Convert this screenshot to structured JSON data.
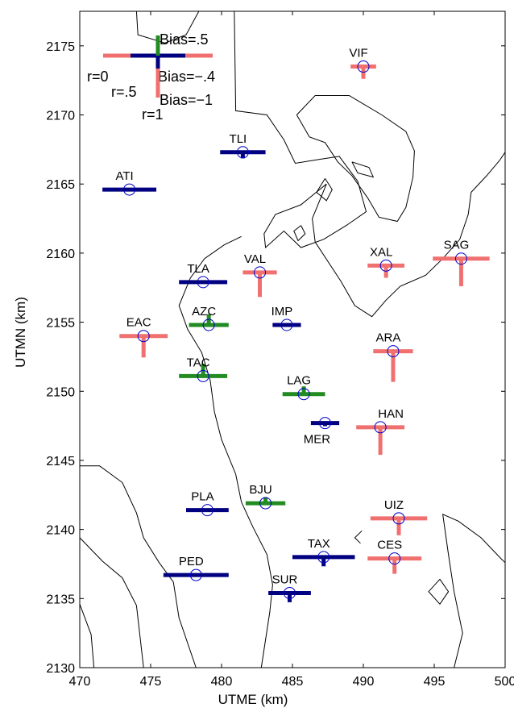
{
  "chart_data": {
    "type": "scatter",
    "title": "",
    "xlabel": "UTME (km)",
    "ylabel": "UTMN (km)",
    "xlim": [
      470,
      500
    ],
    "ylim": [
      2130,
      2177.5
    ],
    "x_ticks": [
      470,
      475,
      480,
      485,
      490,
      495,
      500
    ],
    "y_ticks": [
      2130,
      2135,
      2140,
      2145,
      2150,
      2155,
      2160,
      2165,
      2170,
      2175
    ],
    "grid": false,
    "colors": {
      "positive_bias": "#228b22",
      "near_zero_bias": "#000080",
      "negative_bias": "#f07070",
      "contour": "#000000",
      "station_marker": "#0000cc"
    },
    "legend": {
      "placement": "top-left",
      "labels": {
        "r0": "r=0",
        "r05": "r=.5",
        "r1": "r=1",
        "bias_pos": "Bias=.5",
        "bias_mid": "Bias=−.4",
        "bias_neg": "Bias=−1"
      }
    },
    "stations": [
      {
        "name": "VIF",
        "x": 490.0,
        "y": 2173.5,
        "width": 1.8,
        "bias": -0.4
      },
      {
        "name": "TLI",
        "x": 481.5,
        "y": 2167.3,
        "width": 3.2,
        "bias": -0.2
      },
      {
        "name": "ATI",
        "x": 473.5,
        "y": 2164.6,
        "width": 3.8,
        "bias": 0.0
      },
      {
        "name": "VAL",
        "x": 482.7,
        "y": 2158.6,
        "width": 2.4,
        "bias": -0.8
      },
      {
        "name": "XAL",
        "x": 491.6,
        "y": 2159.1,
        "width": 2.6,
        "bias": -0.4
      },
      {
        "name": "SAG",
        "x": 496.9,
        "y": 2159.6,
        "width": 4.0,
        "bias": -0.9
      },
      {
        "name": "TLA",
        "x": 478.7,
        "y": 2157.9,
        "width": 3.4,
        "bias": 0.0
      },
      {
        "name": "AZC",
        "x": 479.1,
        "y": 2154.8,
        "width": 2.8,
        "bias": 0.35
      },
      {
        "name": "IMP",
        "x": 484.6,
        "y": 2154.8,
        "width": 2.0,
        "bias": 0.0
      },
      {
        "name": "EAC",
        "x": 474.5,
        "y": 2154.0,
        "width": 3.4,
        "bias": -0.7
      },
      {
        "name": "ARA",
        "x": 492.1,
        "y": 2152.9,
        "width": 2.8,
        "bias": -1.0
      },
      {
        "name": "TAC",
        "x": 478.7,
        "y": 2151.1,
        "width": 3.4,
        "bias": 0.4
      },
      {
        "name": "LAG",
        "x": 485.8,
        "y": 2149.8,
        "width": 3.0,
        "bias": 0.25
      },
      {
        "name": "MER",
        "x": 487.3,
        "y": 2147.7,
        "width": 2.0,
        "bias": -0.1
      },
      {
        "name": "HAN",
        "x": 491.2,
        "y": 2147.4,
        "width": 3.4,
        "bias": -0.9
      },
      {
        "name": "PLA",
        "x": 479.0,
        "y": 2141.4,
        "width": 3.0,
        "bias": 0.0
      },
      {
        "name": "BJU",
        "x": 483.1,
        "y": 2141.9,
        "width": 2.8,
        "bias": 0.2
      },
      {
        "name": "UIZ",
        "x": 492.5,
        "y": 2140.8,
        "width": 4.0,
        "bias": -0.55
      },
      {
        "name": "TAX",
        "x": 487.2,
        "y": 2138.0,
        "width": 4.4,
        "bias": -0.3
      },
      {
        "name": "CES",
        "x": 492.2,
        "y": 2137.9,
        "width": 3.8,
        "bias": -0.5
      },
      {
        "name": "PED",
        "x": 478.2,
        "y": 2136.7,
        "width": 4.6,
        "bias": 0.0
      },
      {
        "name": "SUR",
        "x": 484.8,
        "y": 2135.4,
        "width": 3.0,
        "bias": -0.3
      }
    ],
    "contours": [
      [
        [
          474.0,
          2177.5
        ],
        [
          474.1,
          2175.8
        ],
        [
          476.0,
          2175.2
        ],
        [
          477.5,
          2175.8
        ],
        [
          478.4,
          2177.5
        ]
      ],
      [
        [
          480.9,
          2177.5
        ],
        [
          481.0,
          2170.3
        ],
        [
          483.2,
          2170.0
        ],
        [
          484.4,
          2168.2
        ],
        [
          485.2,
          2166.5
        ],
        [
          487.0,
          2166.8
        ],
        [
          488.3,
          2167.0
        ],
        [
          489.6,
          2165.2
        ],
        [
          490.2,
          2163.0
        ],
        [
          488.8,
          2162.0
        ],
        [
          487.2,
          2161.0
        ],
        [
          485.6,
          2160.4
        ],
        [
          484.4,
          2161.6
        ],
        [
          483.1,
          2160.4
        ],
        [
          483.0,
          2161.4
        ],
        [
          483.8,
          2162.8
        ],
        [
          485.6,
          2163.5
        ],
        [
          487.4,
          2165.0
        ],
        [
          486.4,
          2162.5
        ],
        [
          486.6,
          2160.8
        ],
        [
          488.4,
          2158.0
        ],
        [
          489.4,
          2156.2
        ],
        [
          490.6,
          2155.4
        ],
        [
          491.6,
          2156.6
        ],
        [
          492.6,
          2157.6
        ],
        [
          494.4,
          2158.4
        ],
        [
          495.6,
          2159.6
        ],
        [
          496.8,
          2161.0
        ],
        [
          497.4,
          2162.8
        ],
        [
          497.6,
          2164.4
        ],
        [
          498.7,
          2165.6
        ],
        [
          499.6,
          2166.7
        ],
        [
          500.0,
          2167.3
        ]
      ],
      [
        [
          485.3,
          2170.0
        ],
        [
          486.6,
          2171.4
        ],
        [
          489.0,
          2171.4
        ],
        [
          491.3,
          2170.0
        ],
        [
          493.0,
          2168.8
        ],
        [
          493.6,
          2167.4
        ],
        [
          493.5,
          2165.5
        ],
        [
          493.0,
          2163.3
        ],
        [
          492.4,
          2162.3
        ],
        [
          491.1,
          2162.6
        ],
        [
          490.3,
          2164.0
        ],
        [
          489.2,
          2165.6
        ],
        [
          488.2,
          2166.6
        ],
        [
          487.3,
          2168.0
        ],
        [
          486.2,
          2168.4
        ],
        [
          485.3,
          2170.0
        ]
      ],
      [
        [
          489.2,
          2166.6
        ],
        [
          490.4,
          2166.2
        ],
        [
          490.7,
          2165.5
        ],
        [
          489.6,
          2165.8
        ],
        [
          489.2,
          2166.6
        ]
      ],
      [
        [
          487.3,
          2165.4
        ],
        [
          487.8,
          2164.6
        ],
        [
          487.4,
          2163.8
        ],
        [
          486.7,
          2164.4
        ],
        [
          487.3,
          2165.4
        ]
      ],
      [
        [
          485.6,
          2162.0
        ],
        [
          485.9,
          2161.4
        ],
        [
          485.4,
          2160.9
        ],
        [
          485.1,
          2161.6
        ],
        [
          485.6,
          2162.0
        ]
      ],
      [
        [
          481.4,
          2161.2
        ],
        [
          480.2,
          2160.6
        ],
        [
          478.8,
          2159.6
        ],
        [
          477.8,
          2158.2
        ],
        [
          477.0,
          2156.2
        ],
        [
          477.6,
          2154.5
        ],
        [
          478.6,
          2152.8
        ],
        [
          479.2,
          2150.8
        ],
        [
          479.5,
          2148.5
        ],
        [
          480.0,
          2146.5
        ],
        [
          481.0,
          2144.0
        ],
        [
          481.4,
          2142.0
        ],
        [
          482.2,
          2140.2
        ],
        [
          483.2,
          2138.2
        ],
        [
          483.6,
          2136.0
        ],
        [
          483.4,
          2134.0
        ],
        [
          482.8,
          2130.0
        ]
      ],
      [
        [
          470.0,
          2144.6
        ],
        [
          471.4,
          2144.6
        ],
        [
          473.0,
          2143.4
        ],
        [
          474.0,
          2141.2
        ],
        [
          474.5,
          2139.4
        ],
        [
          475.6,
          2137.6
        ],
        [
          476.6,
          2136.2
        ],
        [
          477.0,
          2133.6
        ],
        [
          478.2,
          2130.0
        ]
      ],
      [
        [
          470.0,
          2139.4
        ],
        [
          471.6,
          2137.7
        ],
        [
          473.0,
          2136.5
        ],
        [
          474.0,
          2134.5
        ],
        [
          474.5,
          2130.0
        ]
      ],
      [
        [
          470.0,
          2134.6
        ],
        [
          470.8,
          2132.4
        ],
        [
          471.0,
          2130.0
        ]
      ],
      [
        [
          489.8,
          2139.0
        ],
        [
          489.4,
          2139.4
        ],
        [
          489.9,
          2139.9
        ]
      ],
      [
        [
          496.4,
          2130.0
        ],
        [
          497.0,
          2132.5
        ],
        [
          496.4,
          2135.5
        ],
        [
          496.0,
          2138.2
        ],
        [
          495.6,
          2141.1
        ],
        [
          496.7,
          2140.6
        ],
        [
          498.3,
          2139.4
        ],
        [
          499.6,
          2138.0
        ],
        [
          500.0,
          2137.6
        ]
      ],
      [
        [
          495.4,
          2136.4
        ],
        [
          496.0,
          2135.5
        ],
        [
          495.4,
          2134.6
        ],
        [
          494.6,
          2135.5
        ],
        [
          495.4,
          2136.4
        ]
      ]
    ]
  }
}
